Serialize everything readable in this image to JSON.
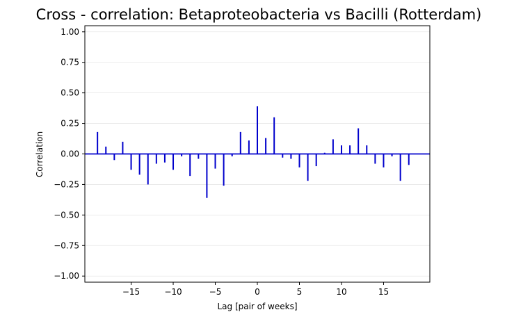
{
  "chart_data": {
    "type": "bar",
    "title": "Cross - correlation: Betaproteobacteria vs Bacilli (Rotterdam)",
    "xlabel": "Lag [pair of weeks]",
    "ylabel": "Correlation",
    "xlim": [
      -20.5,
      20.5
    ],
    "ylim": [
      -1.05,
      1.05
    ],
    "x_ticks": [
      -15,
      -10,
      -5,
      0,
      5,
      10,
      15
    ],
    "x_tick_labels": [
      "−15",
      "−10",
      "−5",
      "0",
      "5",
      "10",
      "15"
    ],
    "y_ticks": [
      -1.0,
      -0.75,
      -0.5,
      -0.25,
      0.0,
      0.25,
      0.5,
      0.75,
      1.0
    ],
    "y_tick_labels": [
      "−1.00",
      "−0.75",
      "−0.50",
      "−0.25",
      "0.00",
      "0.25",
      "0.50",
      "0.75",
      "1.00"
    ],
    "grid": "horizontal",
    "bar_color": "#0000cc",
    "zero_line_color": "#0000cc",
    "lags": [
      -19,
      -18,
      -17,
      -16,
      -15,
      -14,
      -13,
      -12,
      -11,
      -10,
      -9,
      -8,
      -7,
      -6,
      -5,
      -4,
      -3,
      -2,
      -1,
      0,
      1,
      2,
      3,
      4,
      5,
      6,
      7,
      8,
      9,
      10,
      11,
      12,
      13,
      14,
      15,
      16,
      17,
      18
    ],
    "values": [
      0.18,
      0.06,
      -0.05,
      0.1,
      -0.13,
      -0.17,
      -0.25,
      -0.08,
      -0.07,
      -0.13,
      -0.02,
      -0.18,
      -0.04,
      -0.36,
      -0.12,
      -0.26,
      -0.02,
      0.18,
      0.11,
      0.39,
      0.13,
      0.3,
      -0.03,
      -0.04,
      -0.11,
      -0.22,
      -0.1,
      0.01,
      0.12,
      0.07,
      0.07,
      0.21,
      0.07,
      -0.08,
      -0.11,
      -0.02,
      -0.22,
      -0.09
    ]
  }
}
